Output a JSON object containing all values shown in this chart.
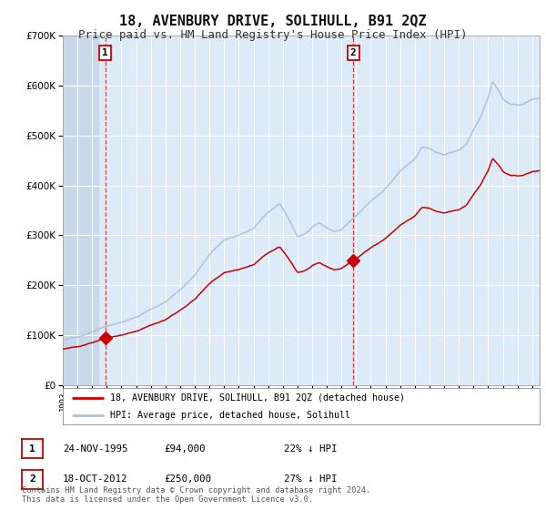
{
  "title": "18, AVENBURY DRIVE, SOLIHULL, B91 2QZ",
  "subtitle": "Price paid vs. HM Land Registry's House Price Index (HPI)",
  "title_fontsize": 11,
  "subtitle_fontsize": 9,
  "background_color": "#ffffff",
  "plot_bg_color": "#ddeaf7",
  "hatch_color": "#c8d8ea",
  "grid_color": "#ffffff",
  "ylim": [
    0,
    700000
  ],
  "yticks": [
    0,
    100000,
    200000,
    300000,
    400000,
    500000,
    600000,
    700000
  ],
  "hpi_color": "#a8c4e0",
  "price_color": "#cc0000",
  "sale1_date": 1995.9,
  "sale1_price": 94000,
  "sale2_date": 2012.8,
  "sale2_price": 250000,
  "xmin": 1993.0,
  "xmax": 2025.5,
  "legend_label_price": "18, AVENBURY DRIVE, SOLIHULL, B91 2QZ (detached house)",
  "legend_label_hpi": "HPI: Average price, detached house, Solihull",
  "footnote": "Contains HM Land Registry data © Crown copyright and database right 2024.\nThis data is licensed under the Open Government Licence v3.0.",
  "table_row1": [
    "1",
    "24-NOV-1995",
    "£94,000",
    "22% ↓ HPI"
  ],
  "table_row2": [
    "2",
    "18-OCT-2012",
    "£250,000",
    "27% ↓ HPI"
  ]
}
